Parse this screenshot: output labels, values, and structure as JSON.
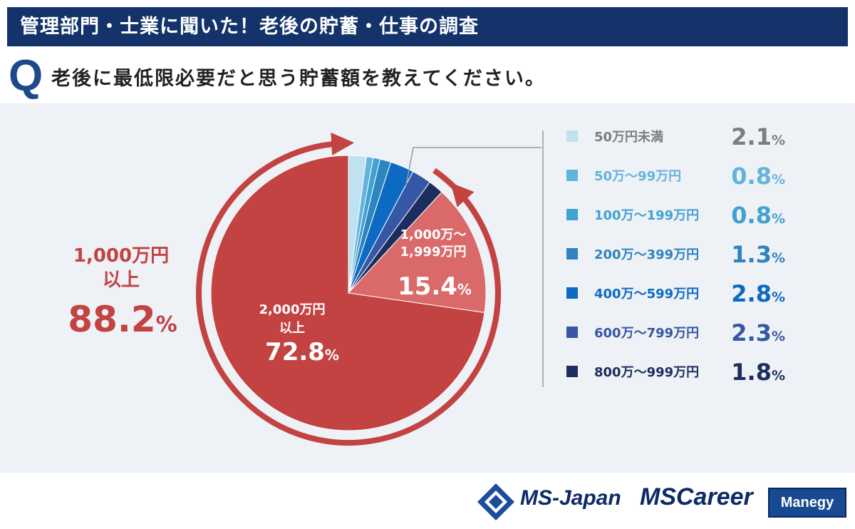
{
  "header": {
    "title": "管理部門・士業に聞いた！老後の貯蓄・仕事の調査",
    "question_mark": "Q",
    "question": "老後に最低限必要だと思う貯蓄額を教えてください。"
  },
  "chart_data": {
    "type": "pie",
    "slices": [
      {
        "label": "50万円未満",
        "value": 2.1,
        "unit": "%",
        "color": "#bfe1f0"
      },
      {
        "label": "50万～99万円",
        "value": 0.8,
        "unit": "%",
        "color": "#63b4dd"
      },
      {
        "label": "100万～199万円",
        "value": 0.8,
        "unit": "%",
        "color": "#40a3cf"
      },
      {
        "label": "200万～399万円",
        "value": 1.3,
        "unit": "%",
        "color": "#2d84be"
      },
      {
        "label": "400万～599万円",
        "value": 2.8,
        "unit": "%",
        "color": "#0d6ac3"
      },
      {
        "label": "600万～799万円",
        "value": 2.3,
        "unit": "%",
        "color": "#3557a4"
      },
      {
        "label": "800万～999万円",
        "value": 1.8,
        "unit": "%",
        "color": "#1d2d5e"
      },
      {
        "label_lines": [
          "1,000万～",
          "1,999万円"
        ],
        "value": 15.4,
        "unit": "%",
        "color": "#d96a69"
      },
      {
        "label_lines": [
          "2,000万円",
          "以上"
        ],
        "value": 72.8,
        "unit": "%",
        "color": "#c34242"
      }
    ],
    "group_annotation": {
      "label_lines": [
        "1,000万円",
        "以上"
      ],
      "value": 88.2,
      "unit": "%",
      "color": "#c34242"
    },
    "legend_text_color": "#7d7d7d"
  },
  "footer": {
    "brand1": "MS-Japan",
    "brand2": "MSCareer",
    "brand3": "Manegy"
  }
}
